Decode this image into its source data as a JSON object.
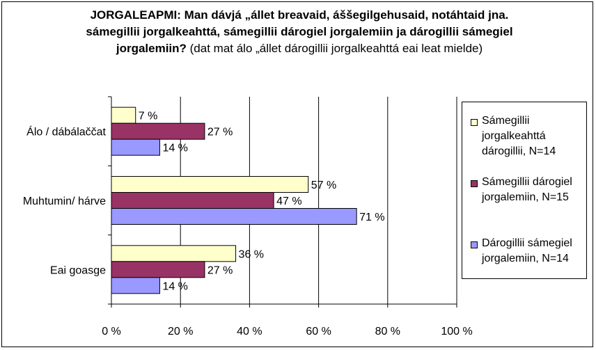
{
  "chart_data": {
    "type": "bar",
    "orientation": "horizontal",
    "title_bold": "JORGALEAPMI: Man dávjá „állet breavaid, áššegilgehusaid, notáhtaid jna. sámegillii jorgalkeahttá, sámegillii dárogiel jorgalemiin ja dárogillii sámegiel jorgalemiin?",
    "title_normal": " (dat mat álo „állet dárogillii jorgalkeahttá eai leat mielde)",
    "categories": [
      "Álo / dábálaččat",
      "Muhtumin/ hárve",
      "Eai goasge"
    ],
    "series": [
      {
        "name": "Sámegillii jorgalkeahttá dárogillii, N=14",
        "color": "#ffffcc",
        "values": [
          7,
          57,
          36
        ],
        "labels": [
          "7 %",
          "57 %",
          "36 %"
        ]
      },
      {
        "name": "Sámegillii dárogiel jorgalemiin, N=15",
        "color": "#993366",
        "values": [
          27,
          47,
          27
        ],
        "labels": [
          "27 %",
          "47 %",
          "27 %"
        ]
      },
      {
        "name": "Dárogillii sámegiel jorgalemiin, N=14",
        "color": "#9999ff",
        "values": [
          14,
          71,
          14
        ],
        "labels": [
          "14 %",
          "71 %",
          "14 %"
        ]
      }
    ],
    "xlim": [
      0,
      100
    ],
    "xticks": [
      "0 %",
      "20 %",
      "40 %",
      "60 %",
      "80 %",
      "100 %"
    ],
    "grid": true,
    "legend": "right"
  }
}
